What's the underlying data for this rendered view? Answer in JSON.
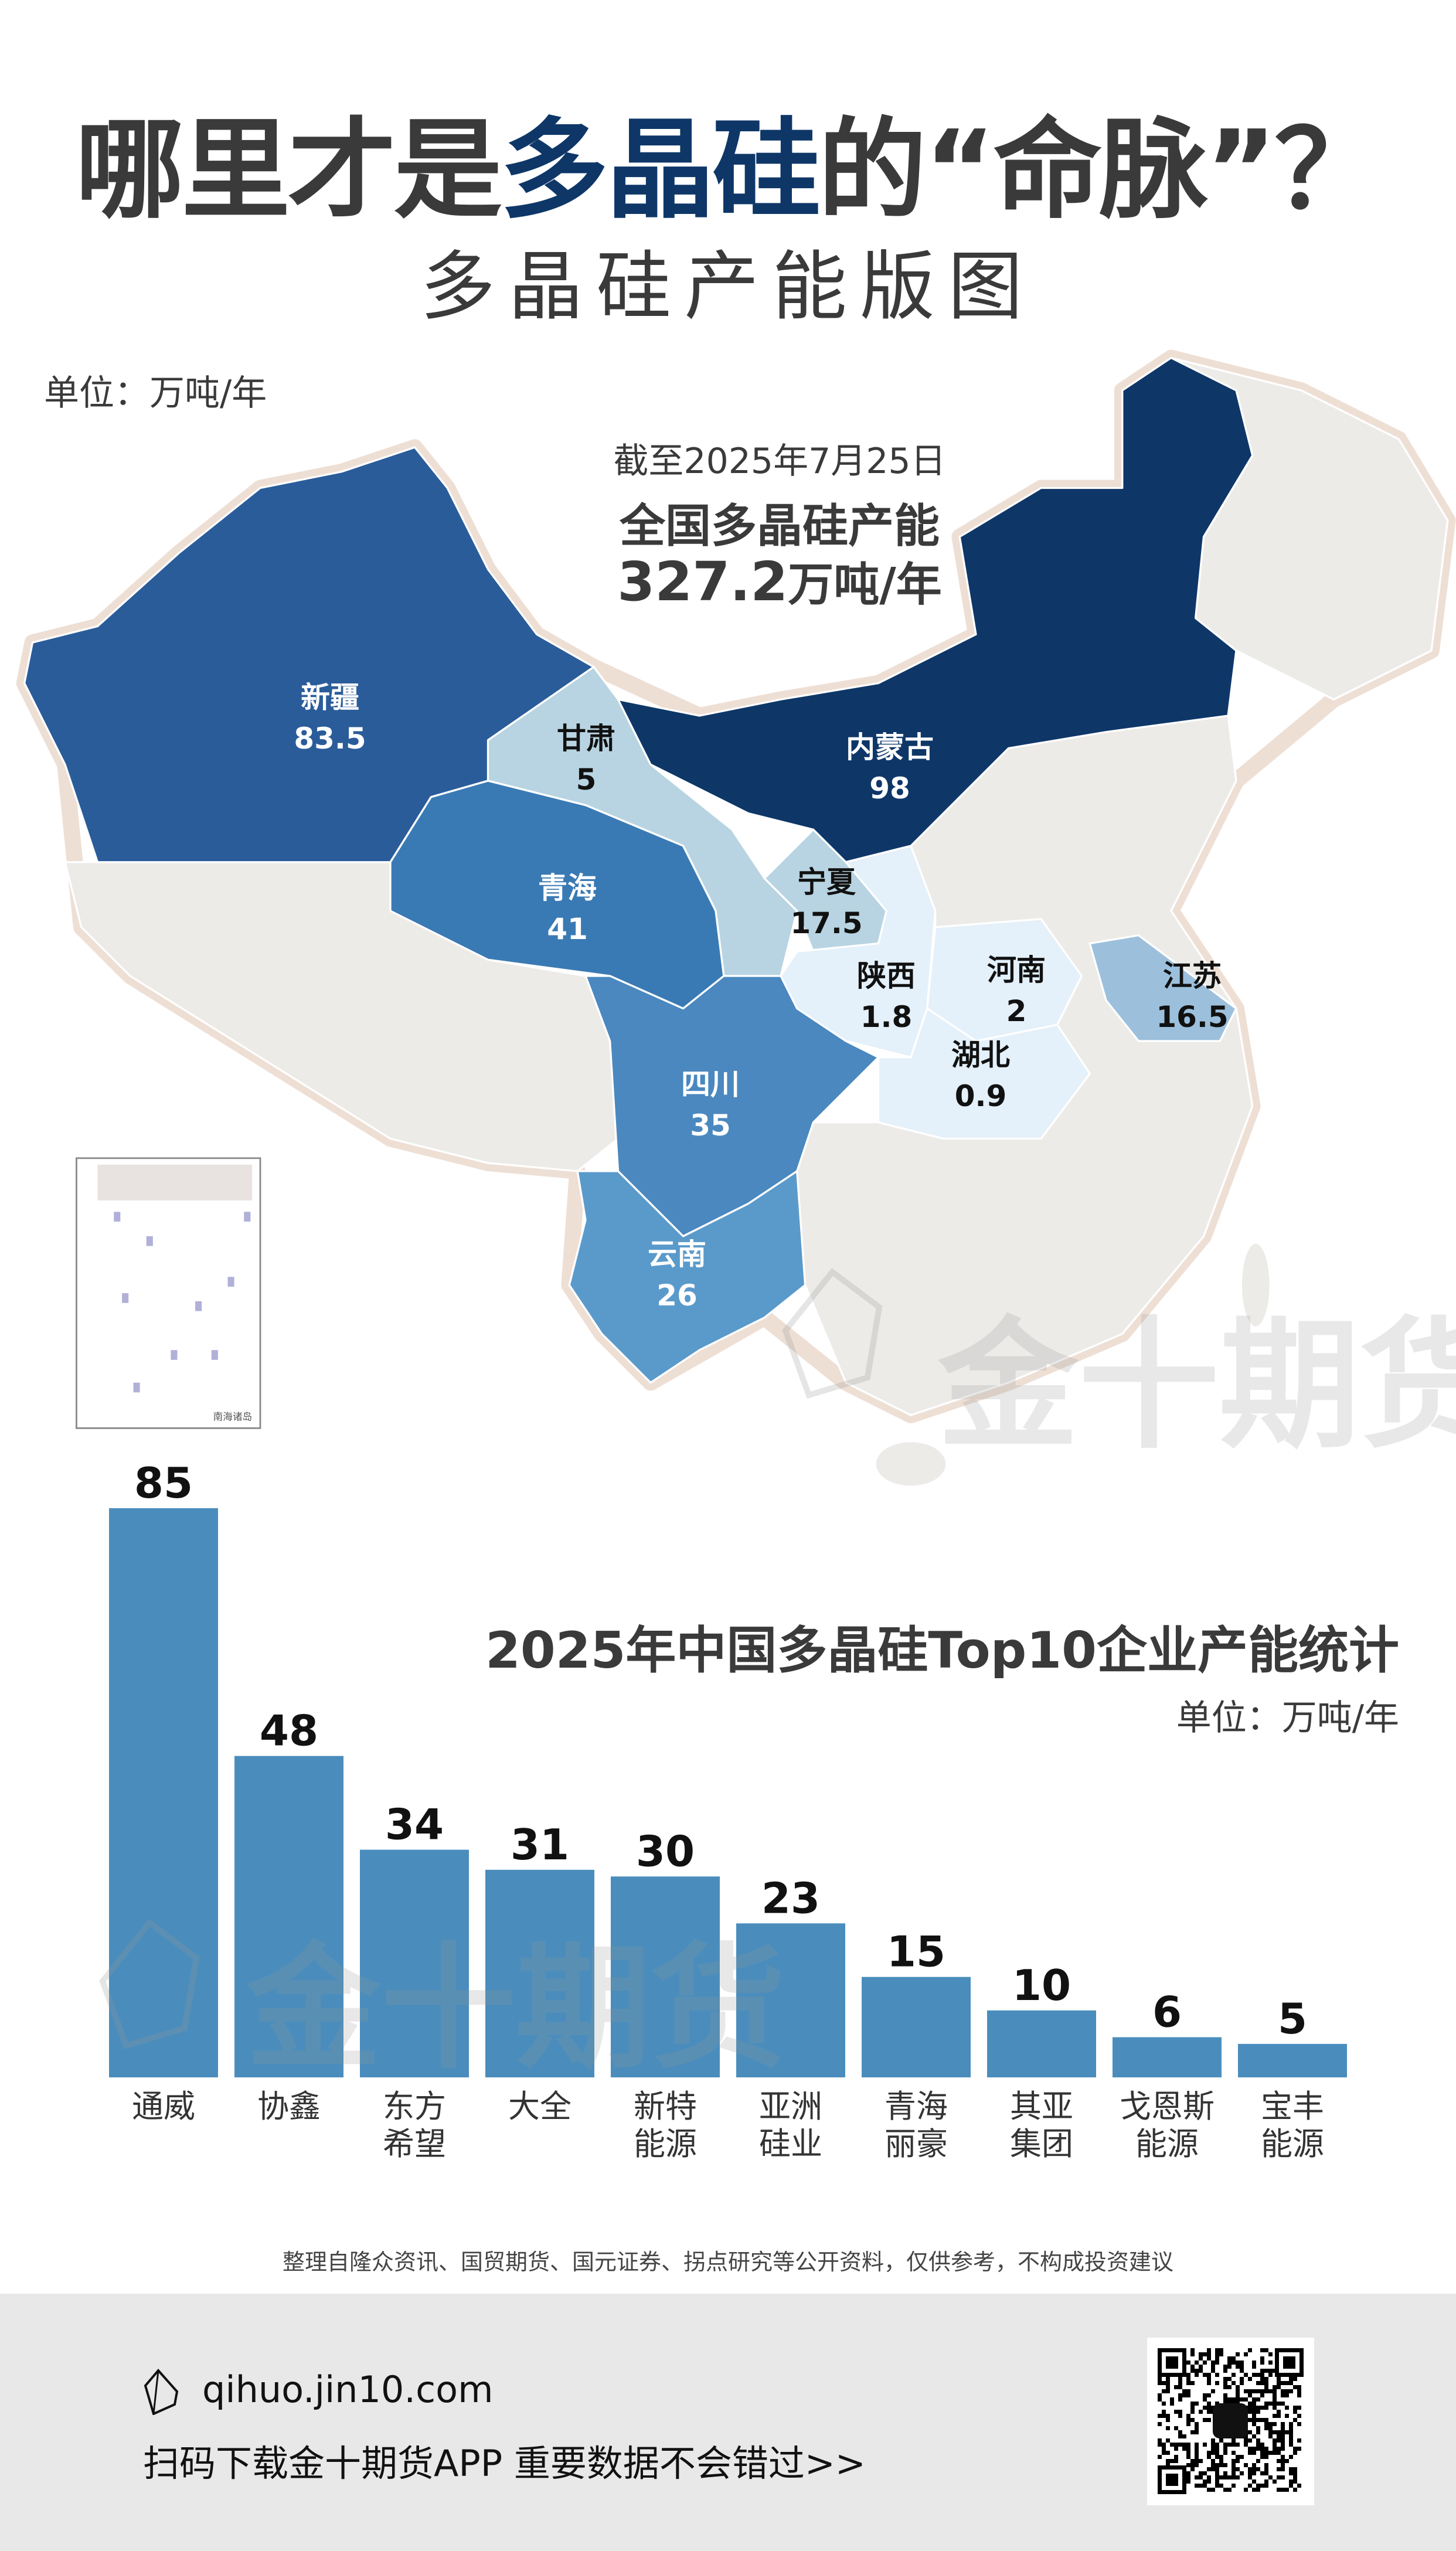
{
  "header": {
    "title_part1": "哪里才是",
    "title_highlight": "多晶硅",
    "title_part2": "的“命脉”？",
    "subtitle": "多晶硅产能版图",
    "unit": "单位：万吨/年"
  },
  "map": {
    "as_of": "截至2025年7月25日",
    "national_label": "全国多晶硅产能",
    "national_total": "327.2",
    "national_unit": "万吨/年",
    "inset_label": "南海诸岛",
    "provinces": [
      {
        "name": "新疆",
        "value": "83.5",
        "color": "#2a5c9a"
      },
      {
        "name": "甘肃",
        "value": "5",
        "color": "#b8d4e2"
      },
      {
        "name": "内蒙古",
        "value": "98",
        "color": "#0e3768"
      },
      {
        "name": "青海",
        "value": "41",
        "color": "#3a7ab4"
      },
      {
        "name": "宁夏",
        "value": "17.5",
        "color": "#b8d4e2"
      },
      {
        "name": "陕西",
        "value": "1.8",
        "color": "#e4f0fa"
      },
      {
        "name": "河南",
        "value": "2",
        "color": "#e4f0fa"
      },
      {
        "name": "江苏",
        "value": "16.5",
        "color": "#9cc0dc"
      },
      {
        "name": "湖北",
        "value": "0.9",
        "color": "#e4f0fa"
      },
      {
        "name": "四川",
        "value": "35",
        "color": "#4a88bf"
      },
      {
        "name": "云南",
        "value": "26",
        "color": "#5a9acb"
      }
    ],
    "no_data_color": "#ecebe8"
  },
  "watermark": "金十期货",
  "chart_data": {
    "type": "bar",
    "title": "2025年中国多晶硅Top10企业产能统计",
    "unit": "单位：万吨/年",
    "categories": [
      "通威",
      "协鑫",
      "东方希望",
      "大全",
      "新特能源",
      "亚洲硅业",
      "青海丽豪",
      "其亚集团",
      "戈恩斯能源",
      "宝丰能源"
    ],
    "values": [
      85,
      48,
      34,
      31,
      30,
      23,
      15,
      10,
      6,
      5
    ],
    "ylim": [
      0,
      85
    ],
    "bar_color": "#4a8dbd",
    "grid": false,
    "data_labels": true
  },
  "footer": {
    "source_note": "整理自隆众资讯、国贸期货、国元证券、拐点研究等公开资料，仅供参考，不构成投资建议",
    "site": "qihuo.jin10.com",
    "slogan": "扫码下载金十期货APP 重要数据不会错过>>"
  }
}
